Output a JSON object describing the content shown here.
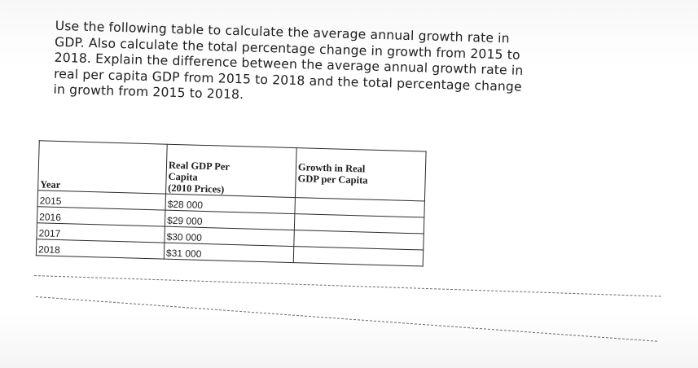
{
  "question": {
    "lines": [
      "Use the following table to calculate the average annual growth rate in",
      "GDP. Also calculate the total percentage change in growth from 2015 to",
      "2018. Explain the difference between the average annual growth rate in",
      "real per capita GDP from 2015 to 2018 and the total percentage change",
      "in growth from 2015 to 2018."
    ]
  },
  "table": {
    "headers": {
      "year": "Year",
      "gdp_line1": "Real GDP Per",
      "gdp_line2": "Capita",
      "gdp_line3": "(2010 Prices)",
      "growth_line1": "Growth in Real",
      "growth_line2": "GDP per Capita"
    },
    "rows": [
      {
        "year": "2015",
        "gdp": "$28 000",
        "growth": ""
      },
      {
        "year": "2016",
        "gdp": "$29 000",
        "growth": ""
      },
      {
        "year": "2017",
        "gdp": "$30 000",
        "growth": ""
      },
      {
        "year": "2018",
        "gdp": "$31 000",
        "growth": ""
      }
    ]
  }
}
